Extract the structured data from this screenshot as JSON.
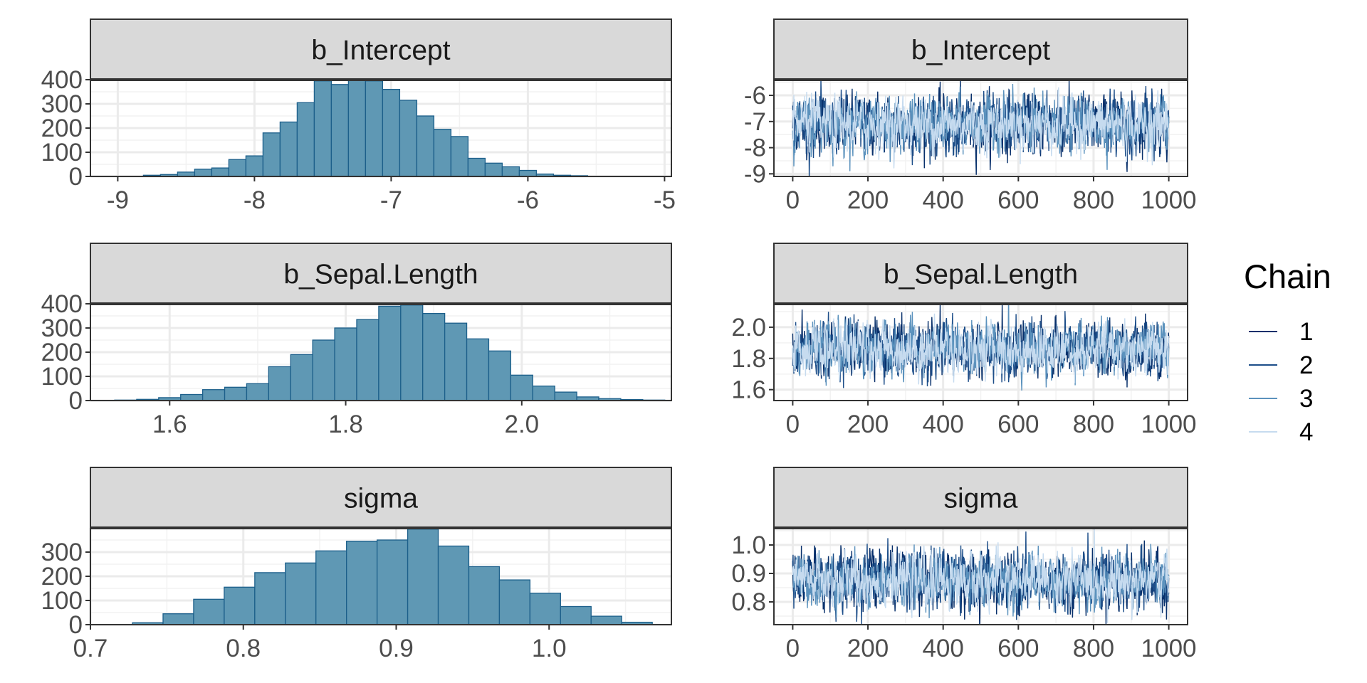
{
  "legend": {
    "title": "Chain",
    "entries": [
      {
        "label": "1",
        "color": "#08306b"
      },
      {
        "label": "2",
        "color": "#1d4e89"
      },
      {
        "label": "3",
        "color": "#5b92bd"
      },
      {
        "label": "4",
        "color": "#c6dbef"
      }
    ]
  },
  "chart_data": [
    {
      "type": "bar",
      "title": "b_Intercept",
      "x": [
        -8.75,
        -8.625,
        -8.5,
        -8.375,
        -8.25,
        -8.125,
        -8.0,
        -7.875,
        -7.75,
        -7.625,
        -7.5,
        -7.375,
        -7.25,
        -7.125,
        -7.0,
        -6.875,
        -6.75,
        -6.625,
        -6.5,
        -6.375,
        -6.25,
        -6.125,
        -6.0,
        -5.875,
        -5.75,
        -5.625,
        -5.5
      ],
      "values": [
        5,
        8,
        18,
        30,
        35,
        70,
        85,
        180,
        225,
        305,
        395,
        380,
        405,
        395,
        360,
        315,
        250,
        195,
        165,
        75,
        55,
        40,
        25,
        10,
        5,
        3,
        1
      ],
      "xlim": [
        -9.2,
        -4.95
      ],
      "ylim": [
        0,
        400
      ],
      "x_ticks": [
        -9,
        -8,
        -7,
        -6,
        -5
      ],
      "y_ticks": [
        0,
        100,
        200,
        300,
        400
      ]
    },
    {
      "type": "line",
      "title": "b_Intercept",
      "xlim": [
        -50,
        1050
      ],
      "ylim": [
        -9.1,
        -5.4
      ],
      "x_ticks": [
        0,
        200,
        400,
        600,
        800,
        1000
      ],
      "y_ticks": [
        -9,
        -8,
        -7,
        -6
      ],
      "chains": [
        {
          "chain": "1",
          "mean": -7.1,
          "sd": 0.55
        },
        {
          "chain": "2",
          "mean": -7.1,
          "sd": 0.55
        },
        {
          "chain": "3",
          "mean": -7.1,
          "sd": 0.5
        },
        {
          "chain": "4",
          "mean": -7.1,
          "sd": 0.5
        }
      ]
    },
    {
      "type": "bar",
      "title": "b_Sepal.Length",
      "x": [
        1.55,
        1.575,
        1.6,
        1.625,
        1.65,
        1.675,
        1.7,
        1.725,
        1.75,
        1.775,
        1.8,
        1.825,
        1.85,
        1.875,
        1.9,
        1.925,
        1.95,
        1.975,
        2.0,
        2.025,
        2.05,
        2.075,
        2.1,
        2.125,
        2.15
      ],
      "values": [
        2,
        5,
        12,
        25,
        45,
        55,
        70,
        140,
        190,
        250,
        300,
        335,
        390,
        395,
        360,
        320,
        255,
        205,
        105,
        60,
        35,
        15,
        8,
        4,
        2
      ],
      "xlim": [
        1.51,
        2.17
      ],
      "ylim": [
        0,
        400
      ],
      "x_ticks": [
        1.6,
        1.8,
        2.0
      ],
      "y_ticks": [
        0,
        100,
        200,
        300,
        400
      ]
    },
    {
      "type": "line",
      "title": "b_Sepal.Length",
      "xlim": [
        -50,
        1050
      ],
      "ylim": [
        1.53,
        2.15
      ],
      "x_ticks": [
        0,
        200,
        400,
        600,
        800,
        1000
      ],
      "y_ticks": [
        1.6,
        1.8,
        2.0
      ],
      "chains": [
        {
          "chain": "1",
          "mean": 1.86,
          "sd": 0.085
        },
        {
          "chain": "2",
          "mean": 1.86,
          "sd": 0.085
        },
        {
          "chain": "3",
          "mean": 1.86,
          "sd": 0.08
        },
        {
          "chain": "4",
          "mean": 1.86,
          "sd": 0.08
        }
      ]
    },
    {
      "type": "bar",
      "title": "sigma",
      "x": [
        0.7375,
        0.7575,
        0.7775,
        0.7975,
        0.8175,
        0.8375,
        0.8575,
        0.8775,
        0.8975,
        0.9175,
        0.9375,
        0.9575,
        0.9775,
        0.9975,
        1.0175,
        1.0375,
        1.0575
      ],
      "values": [
        8,
        45,
        105,
        155,
        215,
        255,
        305,
        345,
        350,
        395,
        325,
        240,
        185,
        130,
        75,
        35,
        10
      ],
      "xlim": [
        0.7,
        1.08
      ],
      "ylim": [
        0,
        400
      ],
      "x_ticks": [
        0.7,
        0.8,
        0.9,
        1.0
      ],
      "y_ticks": [
        0,
        100,
        200,
        300
      ]
    },
    {
      "type": "line",
      "title": "sigma",
      "xlim": [
        -50,
        1050
      ],
      "ylim": [
        0.72,
        1.06
      ],
      "x_ticks": [
        0,
        200,
        400,
        600,
        800,
        1000
      ],
      "y_ticks": [
        0.8,
        0.9,
        1.0
      ],
      "chains": [
        {
          "chain": "1",
          "mean": 0.875,
          "sd": 0.05
        },
        {
          "chain": "2",
          "mean": 0.875,
          "sd": 0.05
        },
        {
          "chain": "3",
          "mean": 0.875,
          "sd": 0.045
        },
        {
          "chain": "4",
          "mean": 0.875,
          "sd": 0.045
        }
      ]
    }
  ]
}
